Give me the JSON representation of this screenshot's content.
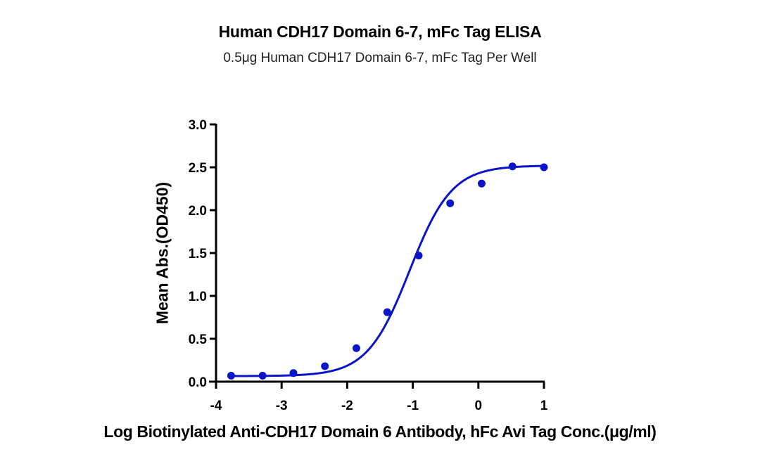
{
  "chart_data": {
    "type": "scatter",
    "title": "Human CDH17 Domain 6-7, mFc Tag ELISA",
    "subtitle": "0.5μg Human CDH17 Domain 6-7, mFc Tag Per Well",
    "xlabel": "Log Biotinylated Anti-CDH17 Domain 6 Antibody, hFc Avi Tag Conc.(μg/ml)",
    "ylabel": "Mean Abs.(OD450)",
    "xlim": [
      -4,
      1
    ],
    "ylim": [
      0,
      3.0
    ],
    "x_ticks": [
      "-4",
      "-3",
      "-2",
      "-1",
      "0",
      "1"
    ],
    "y_ticks": [
      "0.0",
      "0.5",
      "1.0",
      "1.5",
      "2.0",
      "2.5",
      "3.0"
    ],
    "grid": false,
    "legend": null,
    "series": [
      {
        "name": "Mean Abs.(OD450)",
        "color": "#0a14c8",
        "fit": "sigmoidal 4PL curve",
        "x": [
          -3.77,
          -3.29,
          -2.82,
          -2.34,
          -1.86,
          -1.39,
          -0.91,
          -0.43,
          0.05,
          0.52,
          1.0
        ],
        "values": [
          0.07,
          0.07,
          0.1,
          0.18,
          0.39,
          0.81,
          1.47,
          2.08,
          2.31,
          2.51,
          2.5
        ]
      }
    ]
  }
}
